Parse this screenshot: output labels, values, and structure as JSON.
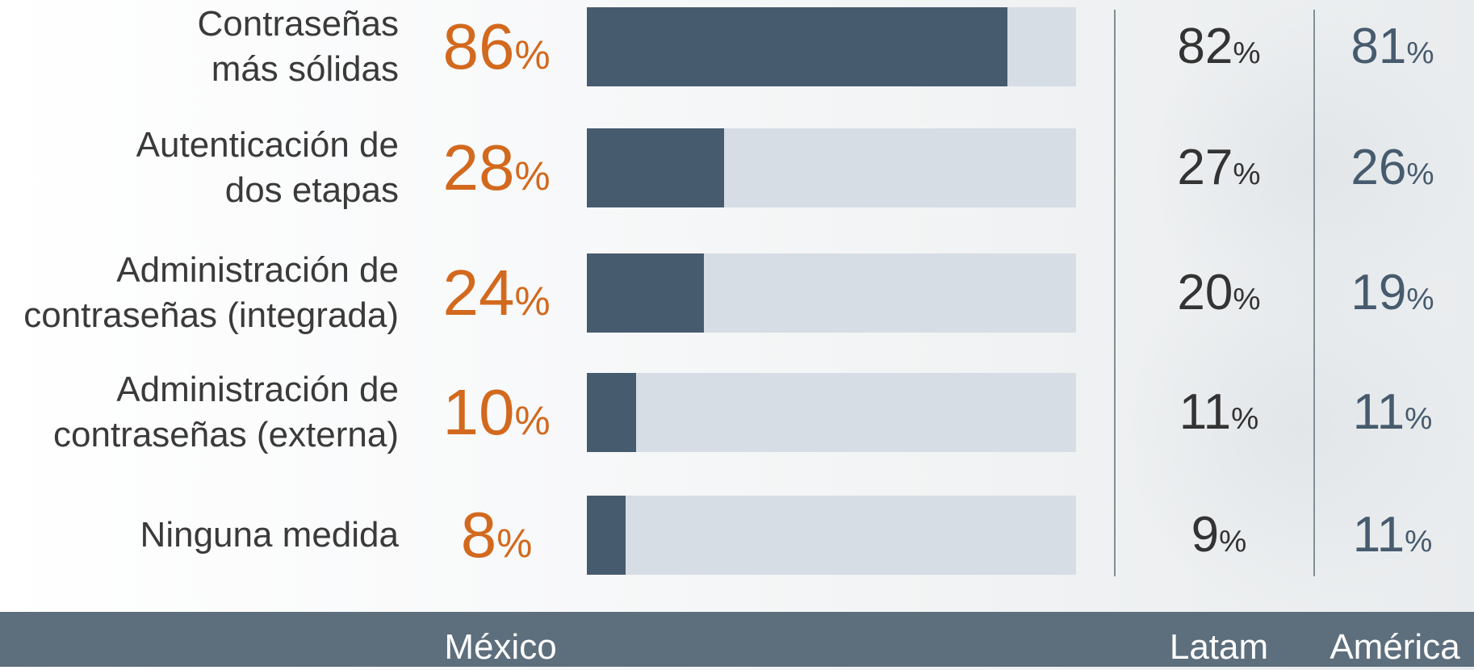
{
  "chart_data": {
    "type": "bar",
    "orientation": "horizontal",
    "categories": [
      "Contraseñas\nmás sólidas",
      "Autenticación de\ndos etapas",
      "Administración de\ncontraseñas (integrada)",
      "Administración de\ncontraseñas (externa)",
      "Ninguna medida"
    ],
    "series": [
      {
        "name": "México",
        "values": [
          86,
          28,
          24,
          10,
          8
        ]
      },
      {
        "name": "Latam",
        "values": [
          82,
          27,
          20,
          11,
          9
        ]
      },
      {
        "name": "América",
        "values": [
          81,
          26,
          19,
          11,
          11
        ]
      }
    ],
    "value_unit": "%",
    "xlim": [
      0,
      100
    ],
    "grid": false,
    "legend": "bottom"
  },
  "colors": {
    "mexico_value": "#d2691e",
    "bar_fill": "#475b6e",
    "bar_track": "#d6dde4",
    "footer": "#5d6e7d"
  }
}
